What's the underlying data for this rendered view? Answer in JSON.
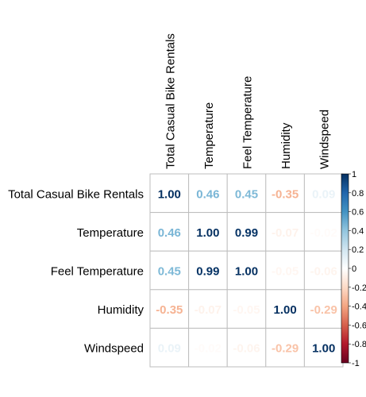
{
  "chart_data": {
    "type": "heatmap",
    "variables": [
      "Total Casual Bike Rentals",
      "Temperature",
      "Feel Temperature",
      "Humidity",
      "Windspeed"
    ],
    "matrix": [
      [
        1.0,
        0.46,
        0.45,
        -0.35,
        0.09
      ],
      [
        0.46,
        1.0,
        0.99,
        -0.07,
        -0.02
      ],
      [
        0.45,
        0.99,
        1.0,
        -0.05,
        -0.06
      ],
      [
        -0.35,
        -0.07,
        -0.05,
        1.0,
        -0.29
      ],
      [
        0.09,
        -0.02,
        -0.06,
        -0.29,
        1.0
      ]
    ],
    "value_labels": [
      [
        "1.00",
        "0.46",
        "0.45",
        "-0.35",
        "0.09"
      ],
      [
        "0.46",
        "1.00",
        "0.99",
        "-0.07",
        "-0.02"
      ],
      [
        "0.45",
        "0.99",
        "1.00",
        "-0.05",
        "-0.06"
      ],
      [
        "-0.35",
        "-0.07",
        "-0.05",
        "1.00",
        "-0.29"
      ],
      [
        "0.09",
        "-0.02",
        "-0.06",
        "-0.29",
        "1.00"
      ]
    ],
    "colorbar": {
      "range": [
        -1,
        1
      ],
      "ticks": [
        "1",
        "0.8",
        "0.6",
        "0.4",
        "0.2",
        "0",
        "-0.2",
        "-0.4",
        "-0.6",
        "-0.8",
        "-1"
      ],
      "low_color": "#67001F",
      "mid_color": "#FFFFFF",
      "high_color": "#053061",
      "placement": "right"
    },
    "grid": true,
    "title": "",
    "xlabel": "",
    "ylabel": ""
  }
}
